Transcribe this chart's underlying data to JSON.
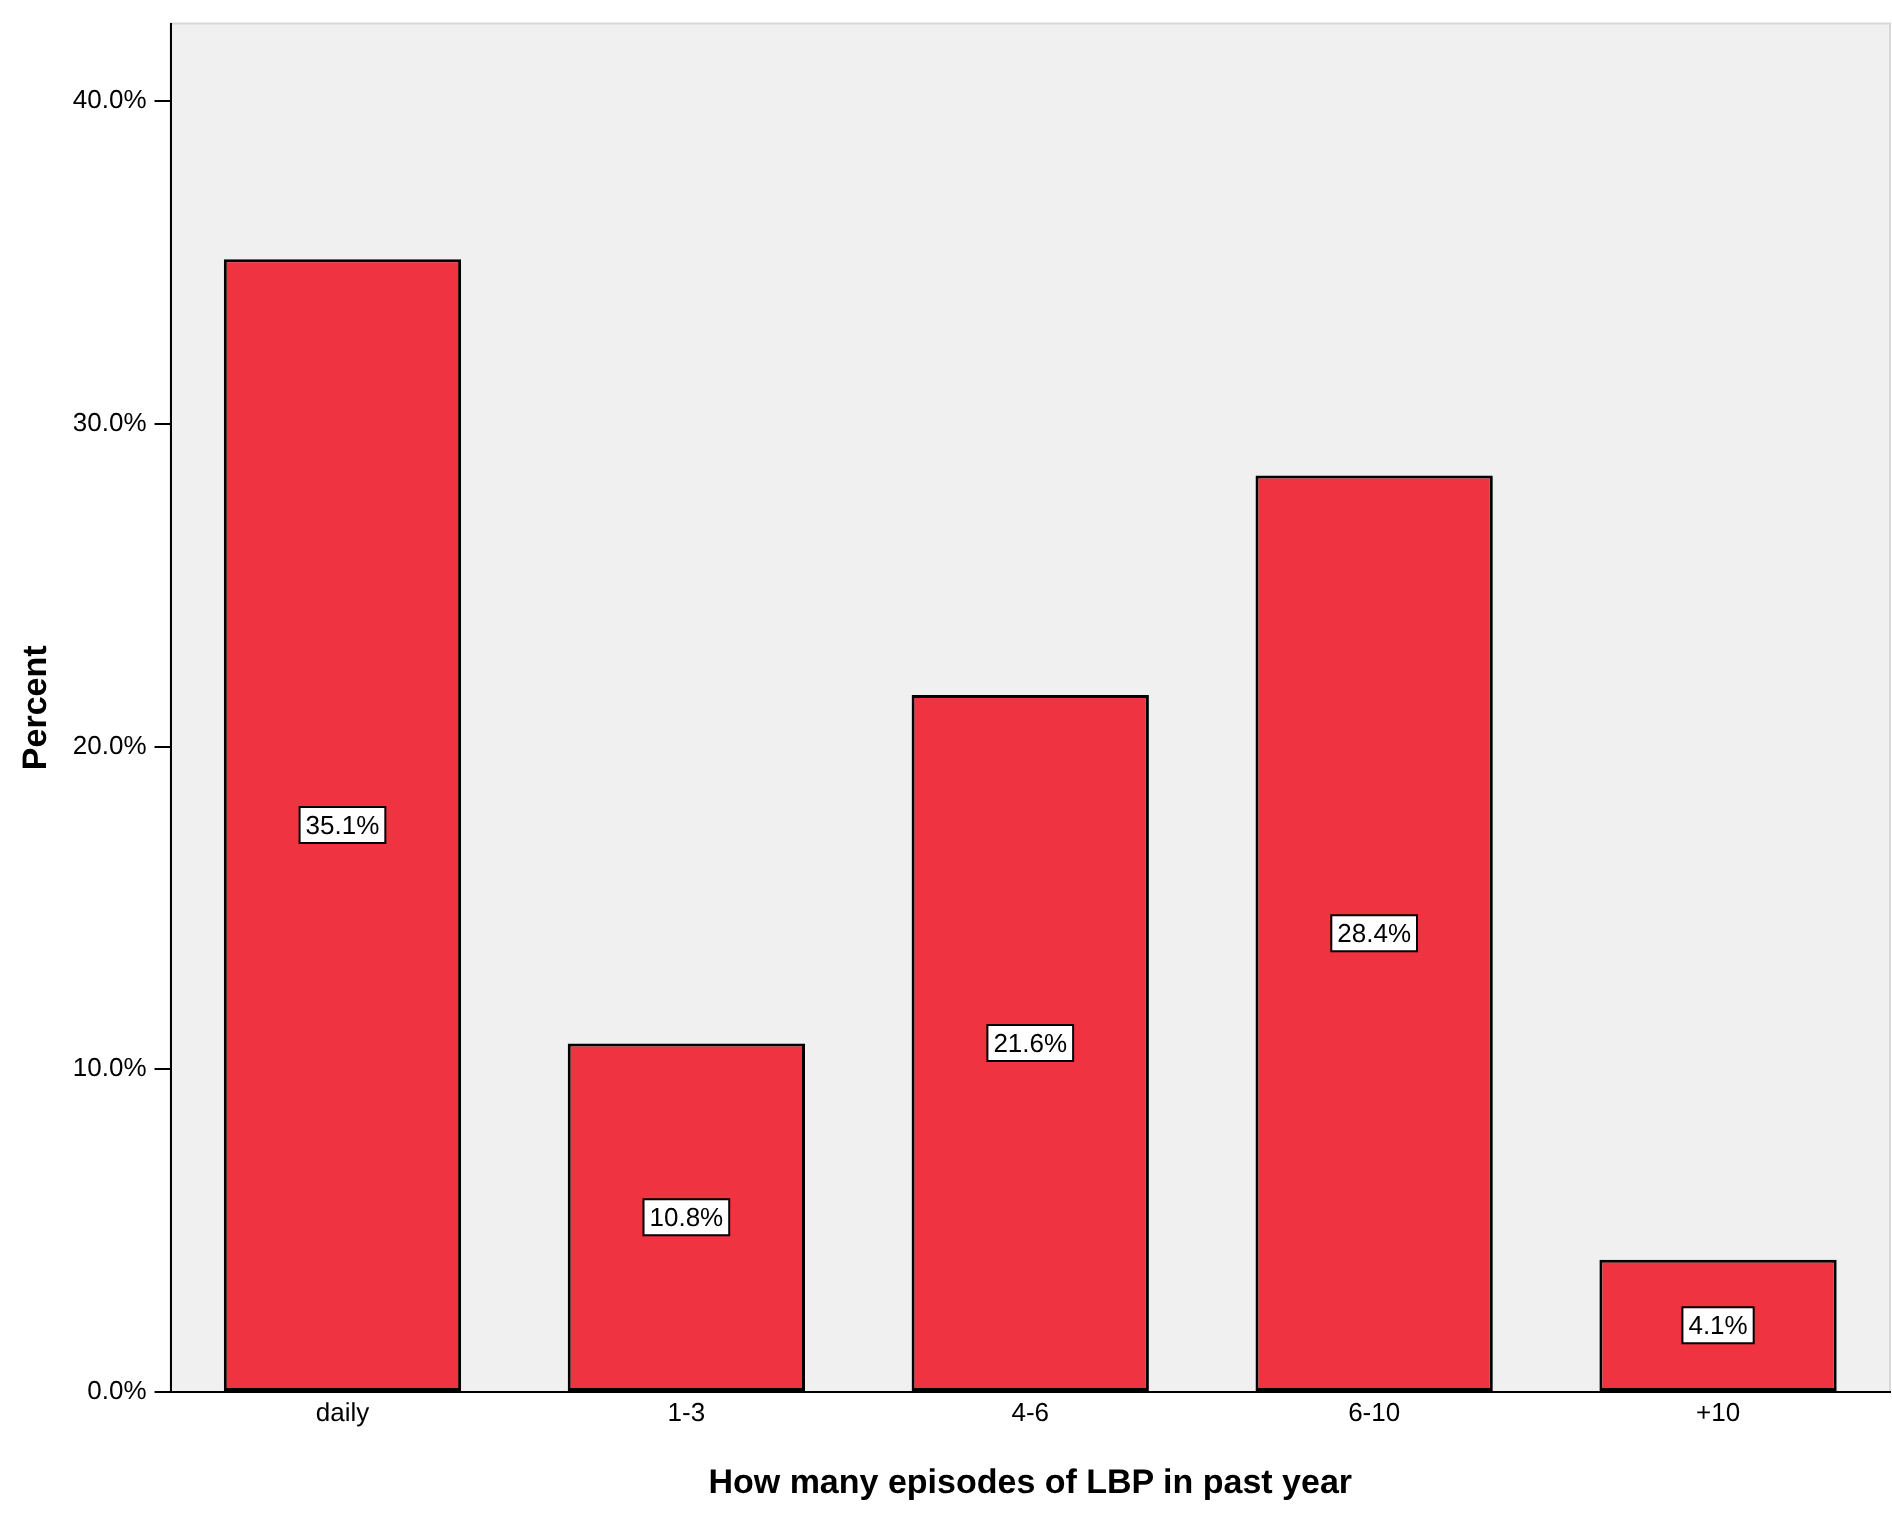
{
  "chart_data": {
    "type": "bar",
    "xlabel": "How many episodes of LBP in past year",
    "ylabel": "Percent",
    "categories": [
      "daily",
      "1-3",
      "4-6",
      "6-10",
      "+10"
    ],
    "values": [
      35.1,
      10.8,
      21.6,
      28.4,
      4.1
    ],
    "value_labels": [
      "35.1%",
      "10.8%",
      "21.6%",
      "28.4%",
      "4.1%"
    ],
    "color": "#ef3340",
    "ylim": [
      0,
      42.4
    ],
    "yticks": [
      {
        "value": 0,
        "label": "0.0%"
      },
      {
        "value": 10,
        "label": "10.0%"
      },
      {
        "value": 20,
        "label": "20.0%"
      },
      {
        "value": 30,
        "label": "30.0%"
      },
      {
        "value": 40,
        "label": "40.0%"
      }
    ],
    "grid": false,
    "legend": false
  }
}
